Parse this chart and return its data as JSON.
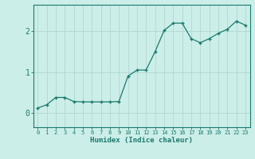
{
  "x": [
    0,
    1,
    2,
    3,
    4,
    5,
    6,
    7,
    8,
    9,
    10,
    11,
    12,
    13,
    14,
    15,
    16,
    17,
    18,
    19,
    20,
    21,
    22,
    23
  ],
  "y": [
    0.12,
    0.2,
    0.38,
    0.38,
    0.28,
    0.27,
    0.27,
    0.27,
    0.27,
    0.28,
    0.9,
    1.05,
    1.05,
    1.5,
    2.02,
    2.2,
    2.2,
    1.82,
    1.72,
    1.82,
    1.95,
    2.05,
    2.25,
    2.15
  ],
  "xlabel": "Humidex (Indice chaleur)",
  "ylabel": "",
  "title": "",
  "bg_color": "#cceee8",
  "line_color": "#1a7a6e",
  "marker_color": "#1a7a6e",
  "grid_color": "#b0d8d0",
  "axis_color": "#1a7a6e",
  "tick_label_color": "#1a7a6e",
  "xlabel_color": "#1a7a6e",
  "yticks": [
    0,
    1,
    2
  ],
  "ylim": [
    -0.35,
    2.65
  ],
  "xlim": [
    -0.5,
    23.5
  ]
}
